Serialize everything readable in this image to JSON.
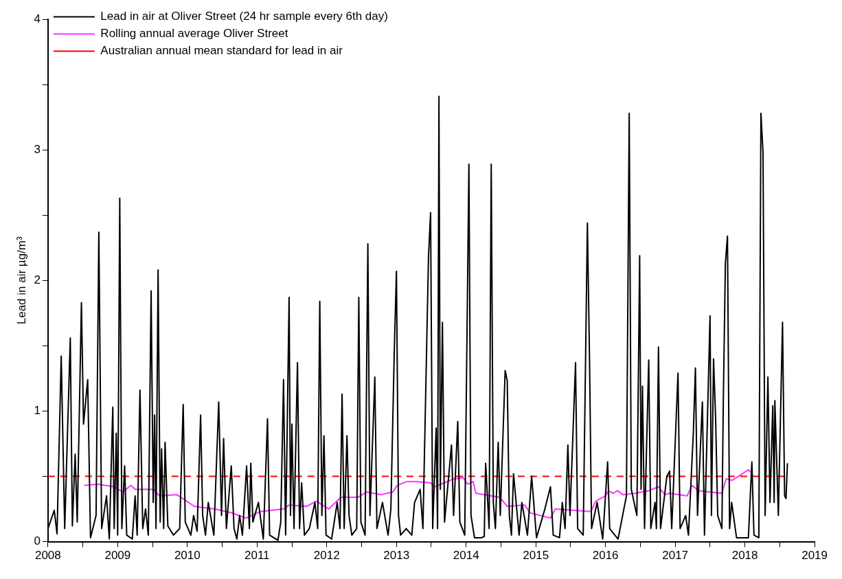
{
  "chart_data": {
    "type": "line",
    "ylabel": "Lead in air µg/m³",
    "xlim": [
      2008,
      2019
    ],
    "xticks": [
      2008,
      {
        "value": 2008.5,
        "label": null
      },
      2009,
      {
        "value": 2009.5,
        "label": null
      },
      2010,
      {
        "value": 2010.5,
        "label": null
      },
      2011,
      {
        "value": 2011.5,
        "label": null
      },
      2012,
      {
        "value": 2012.5,
        "label": null
      },
      2013,
      {
        "value": 2013.5,
        "label": null
      },
      2014,
      {
        "value": 2014.5,
        "label": null
      },
      2015,
      {
        "value": 2015.5,
        "label": null
      },
      2016,
      {
        "value": 2016.5,
        "label": null
      },
      2017,
      {
        "value": 2017.5,
        "label": null
      },
      2018,
      {
        "value": 2018.5,
        "label": null
      },
      2019
    ],
    "ylim": [
      0,
      4
    ],
    "yticks": [
      0,
      {
        "value": 0.5,
        "label": null
      },
      1,
      {
        "value": 1.5,
        "label": null
      },
      2,
      {
        "value": 2.5,
        "label": null
      },
      3,
      {
        "value": 3.5,
        "label": null
      },
      4
    ],
    "grid": false,
    "legend": "top left",
    "marker": "none",
    "series": [
      {
        "name": "Lead in air at Oliver Street (24 hr sample every 6th day)",
        "color": "#000000",
        "line_style": "solid",
        "x": [
          2008.0,
          2008.09,
          2008.13,
          2008.19,
          2008.24,
          2008.32,
          2008.35,
          2008.39,
          2008.42,
          2008.48,
          2008.51,
          2008.57,
          2008.61,
          2008.69,
          2008.73,
          2008.77,
          2008.84,
          2008.88,
          2008.93,
          2008.95,
          2008.98,
          2009.0,
          2009.03,
          2009.06,
          2009.1,
          2009.13,
          2009.21,
          2009.25,
          2009.28,
          2009.32,
          2009.36,
          2009.4,
          2009.44,
          2009.48,
          2009.51,
          2009.53,
          2009.55,
          2009.58,
          2009.61,
          2009.63,
          2009.66,
          2009.68,
          2009.72,
          2009.8,
          2009.89,
          2009.94,
          2009.97,
          2010.05,
          2010.09,
          2010.14,
          2010.19,
          2010.22,
          2010.26,
          2010.3,
          2010.38,
          2010.45,
          2010.49,
          2010.52,
          2010.56,
          2010.63,
          2010.67,
          2010.71,
          2010.75,
          2010.79,
          2010.85,
          2010.89,
          2010.91,
          2010.94,
          2011.02,
          2011.09,
          2011.15,
          2011.18,
          2011.3,
          2011.34,
          2011.38,
          2011.41,
          2011.46,
          2011.48,
          2011.5,
          2011.53,
          2011.58,
          2011.61,
          2011.64,
          2011.68,
          2011.75,
          2011.83,
          2011.87,
          2011.9,
          2011.93,
          2011.96,
          2011.99,
          2012.07,
          2012.15,
          2012.19,
          2012.22,
          2012.25,
          2012.29,
          2012.32,
          2012.36,
          2012.43,
          2012.46,
          2012.49,
          2012.55,
          2012.59,
          2012.62,
          2012.69,
          2012.72,
          2012.8,
          2012.88,
          2012.92,
          2012.97,
          2013.0,
          2013.03,
          2013.06,
          2013.14,
          2013.22,
          2013.26,
          2013.34,
          2013.38,
          2013.46,
          2013.49,
          2013.52,
          2013.57,
          2013.59,
          2013.61,
          2013.63,
          2013.66,
          2013.69,
          2013.79,
          2013.82,
          2013.88,
          2013.91,
          2013.98,
          2014.04,
          2014.07,
          2014.12,
          2014.22,
          2014.26,
          2014.28,
          2014.33,
          2014.36,
          2014.39,
          2014.42,
          2014.46,
          2014.49,
          2014.56,
          2014.59,
          2014.62,
          2014.65,
          2014.68,
          2014.76,
          2014.8,
          2014.88,
          2014.94,
          2015.01,
          2015.13,
          2015.21,
          2015.25,
          2015.34,
          2015.38,
          2015.42,
          2015.46,
          2015.49,
          2015.57,
          2015.6,
          2015.68,
          2015.74,
          2015.77,
          2015.8,
          2015.88,
          2015.96,
          2016.03,
          2016.06,
          2016.18,
          2016.3,
          2016.34,
          2016.37,
          2016.45,
          2016.49,
          2016.51,
          2016.53,
          2016.56,
          2016.62,
          2016.65,
          2016.71,
          2016.73,
          2016.76,
          2016.79,
          2016.88,
          2016.92,
          2016.95,
          2017.04,
          2017.07,
          2017.15,
          2017.19,
          2017.26,
          2017.29,
          2017.32,
          2017.39,
          2017.42,
          2017.5,
          2017.52,
          2017.55,
          2017.58,
          2017.61,
          2017.67,
          2017.69,
          2017.72,
          2017.75,
          2017.78,
          2017.81,
          2017.88,
          2018.05,
          2018.1,
          2018.13,
          2018.2,
          2018.23,
          2018.26,
          2018.29,
          2018.33,
          2018.36,
          2018.4,
          2018.42,
          2018.43,
          2018.48,
          2018.54,
          2018.57,
          2018.59,
          2018.61
        ],
        "values": [
          0.1,
          0.24,
          0.06,
          1.42,
          0.1,
          1.56,
          0.12,
          0.67,
          0.15,
          1.83,
          0.9,
          1.24,
          0.03,
          0.2,
          2.37,
          0.1,
          0.35,
          0.02,
          1.03,
          0.1,
          0.83,
          0.05,
          2.63,
          0.1,
          0.58,
          0.05,
          0.02,
          0.35,
          0.05,
          1.16,
          0.1,
          0.25,
          0.05,
          1.92,
          0.3,
          0.97,
          0.1,
          2.08,
          0.15,
          0.71,
          0.1,
          0.76,
          0.12,
          0.05,
          0.1,
          1.05,
          0.15,
          0.05,
          0.2,
          0.08,
          0.97,
          0.2,
          0.05,
          0.3,
          0.05,
          1.07,
          0.2,
          0.79,
          0.1,
          0.58,
          0.1,
          0.02,
          0.2,
          0.05,
          0.58,
          0.1,
          0.6,
          0.15,
          0.3,
          0.02,
          0.94,
          0.05,
          0.01,
          0.15,
          1.24,
          0.05,
          1.87,
          0.2,
          0.9,
          0.1,
          1.37,
          0.1,
          0.45,
          0.05,
          0.1,
          0.3,
          0.1,
          1.84,
          0.2,
          0.81,
          0.05,
          0.02,
          0.3,
          0.1,
          1.13,
          0.1,
          0.81,
          0.2,
          0.05,
          0.1,
          1.87,
          0.15,
          0.05,
          2.28,
          0.2,
          1.26,
          0.1,
          0.3,
          0.05,
          0.25,
          1.48,
          2.07,
          0.2,
          0.05,
          0.1,
          0.05,
          0.3,
          0.4,
          0.1,
          2.18,
          2.52,
          0.1,
          0.87,
          0.1,
          3.41,
          0.4,
          1.68,
          0.15,
          0.74,
          0.2,
          0.92,
          0.15,
          0.05,
          2.89,
          0.2,
          0.03,
          0.03,
          0.04,
          0.6,
          0.1,
          2.89,
          0.3,
          0.1,
          0.76,
          0.2,
          1.31,
          1.23,
          0.2,
          0.05,
          0.52,
          0.05,
          0.3,
          0.05,
          0.5,
          0.03,
          0.25,
          0.42,
          0.05,
          0.03,
          0.3,
          0.1,
          0.74,
          0.2,
          1.37,
          0.1,
          0.05,
          2.44,
          1.42,
          0.1,
          0.3,
          0.02,
          0.61,
          0.1,
          0.02,
          0.35,
          3.28,
          0.4,
          0.2,
          2.19,
          0.4,
          1.19,
          0.1,
          1.39,
          0.1,
          0.3,
          0.1,
          1.49,
          0.1,
          0.5,
          0.54,
          0.1,
          1.29,
          0.1,
          0.2,
          0.05,
          0.83,
          1.33,
          0.2,
          1.07,
          0.05,
          1.73,
          0.2,
          1.4,
          0.94,
          0.2,
          0.1,
          1.07,
          2.13,
          2.34,
          0.1,
          0.3,
          0.03,
          0.03,
          0.61,
          0.05,
          0.03,
          3.28,
          2.98,
          0.2,
          1.26,
          0.3,
          1.04,
          0.3,
          1.08,
          0.2,
          1.68,
          0.35,
          0.33,
          0.6
        ]
      },
      {
        "name": "Rolling annual average Oliver Street",
        "color": "#ff33ff",
        "line_style": "solid",
        "x": [
          2008.52,
          2008.72,
          2008.95,
          2009.07,
          2009.19,
          2009.25,
          2009.52,
          2009.6,
          2009.85,
          2010.1,
          2010.39,
          2010.64,
          2010.84,
          2011.05,
          2011.38,
          2011.46,
          2011.71,
          2011.85,
          2012.03,
          2012.2,
          2012.45,
          2012.57,
          2012.78,
          2012.95,
          2013.01,
          2013.15,
          2013.3,
          2013.49,
          2013.55,
          2013.82,
          2013.96,
          2014.02,
          2014.1,
          2014.14,
          2014.48,
          2014.59,
          2014.84,
          2014.92,
          2015.21,
          2015.28,
          2015.79,
          2015.86,
          2016.0,
          2016.04,
          2016.11,
          2016.17,
          2016.25,
          2016.42,
          2016.62,
          2016.76,
          2016.85,
          2016.92,
          2017.17,
          2017.24,
          2017.34,
          2017.67,
          2017.73,
          2017.82,
          2017.88,
          2018.05,
          2018.09
        ],
        "values": [
          0.43,
          0.44,
          0.42,
          0.38,
          0.43,
          0.4,
          0.4,
          0.35,
          0.36,
          0.27,
          0.25,
          0.22,
          0.18,
          0.23,
          0.25,
          0.28,
          0.27,
          0.31,
          0.25,
          0.34,
          0.34,
          0.38,
          0.36,
          0.38,
          0.43,
          0.46,
          0.46,
          0.45,
          0.42,
          0.48,
          0.49,
          0.44,
          0.46,
          0.37,
          0.34,
          0.27,
          0.28,
          0.22,
          0.18,
          0.25,
          0.23,
          0.31,
          0.35,
          0.39,
          0.37,
          0.39,
          0.36,
          0.37,
          0.39,
          0.42,
          0.36,
          0.37,
          0.35,
          0.43,
          0.39,
          0.37,
          0.48,
          0.47,
          0.49,
          0.55,
          0.53
        ]
      }
    ],
    "ref_lines": [
      {
        "axis": "y",
        "value": 0.5,
        "label": "Australian annual mean standard for lead in air",
        "color": "#ff0000",
        "line_style": "dashed"
      }
    ]
  }
}
